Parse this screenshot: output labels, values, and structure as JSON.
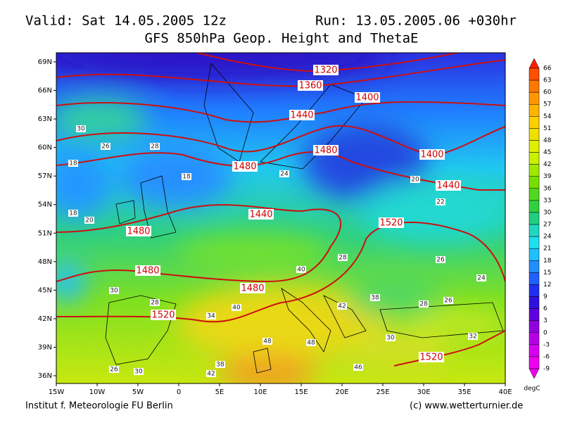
{
  "header": {
    "valid": "Valid: Sat 14.05.2005 12z",
    "run": "Run: 13.05.2005.06 +030hr",
    "title": "GFS 850hPa Geop. Height and ThetaE"
  },
  "map": {
    "lat_labels": [
      "69N",
      "66N",
      "63N",
      "60N",
      "57N",
      "54N",
      "51N",
      "48N",
      "45N",
      "42N",
      "39N",
      "36N"
    ],
    "lon_labels": [
      "15W",
      "10W",
      "5W",
      "0",
      "5E",
      "10E",
      "15E",
      "20E",
      "25E",
      "30E",
      "35E",
      "40E"
    ],
    "height_labels": [
      1320,
      1360,
      1400,
      1440,
      1480,
      1400,
      1480,
      1440,
      1520,
      1440,
      1480,
      1480,
      1480,
      1520,
      1520
    ],
    "thetae_labels": [
      30,
      26,
      18,
      18,
      18,
      20,
      28,
      24,
      22,
      20,
      28,
      26,
      40,
      30,
      28,
      34,
      40,
      42,
      38,
      48,
      48,
      30,
      28,
      26,
      24,
      32,
      46,
      42,
      38,
      26,
      30
    ]
  },
  "colorbar": {
    "labels": [
      66,
      63,
      60,
      57,
      54,
      51,
      48,
      45,
      42,
      39,
      36,
      33,
      30,
      27,
      24,
      21,
      18,
      15,
      12,
      9,
      6,
      3,
      0,
      -3,
      -6,
      -9
    ],
    "unit": "degC",
    "colors": [
      "#ff2000",
      "#ff5000",
      "#ff7800",
      "#ff9800",
      "#ffb400",
      "#ffd000",
      "#f0e000",
      "#e0f000",
      "#c8f000",
      "#a0e800",
      "#78e000",
      "#50d820",
      "#30d040",
      "#20d080",
      "#20d8c0",
      "#20e0f0",
      "#20c0ff",
      "#2090ff",
      "#2060ff",
      "#2030f0",
      "#3010e0",
      "#6000e0",
      "#9000e0",
      "#b800e8",
      "#d800f0",
      "#f000f0"
    ]
  },
  "footer": {
    "left": "Institut f. Meteorologie  FU Berlin",
    "right": "(c) www.wetterturnier.de"
  }
}
